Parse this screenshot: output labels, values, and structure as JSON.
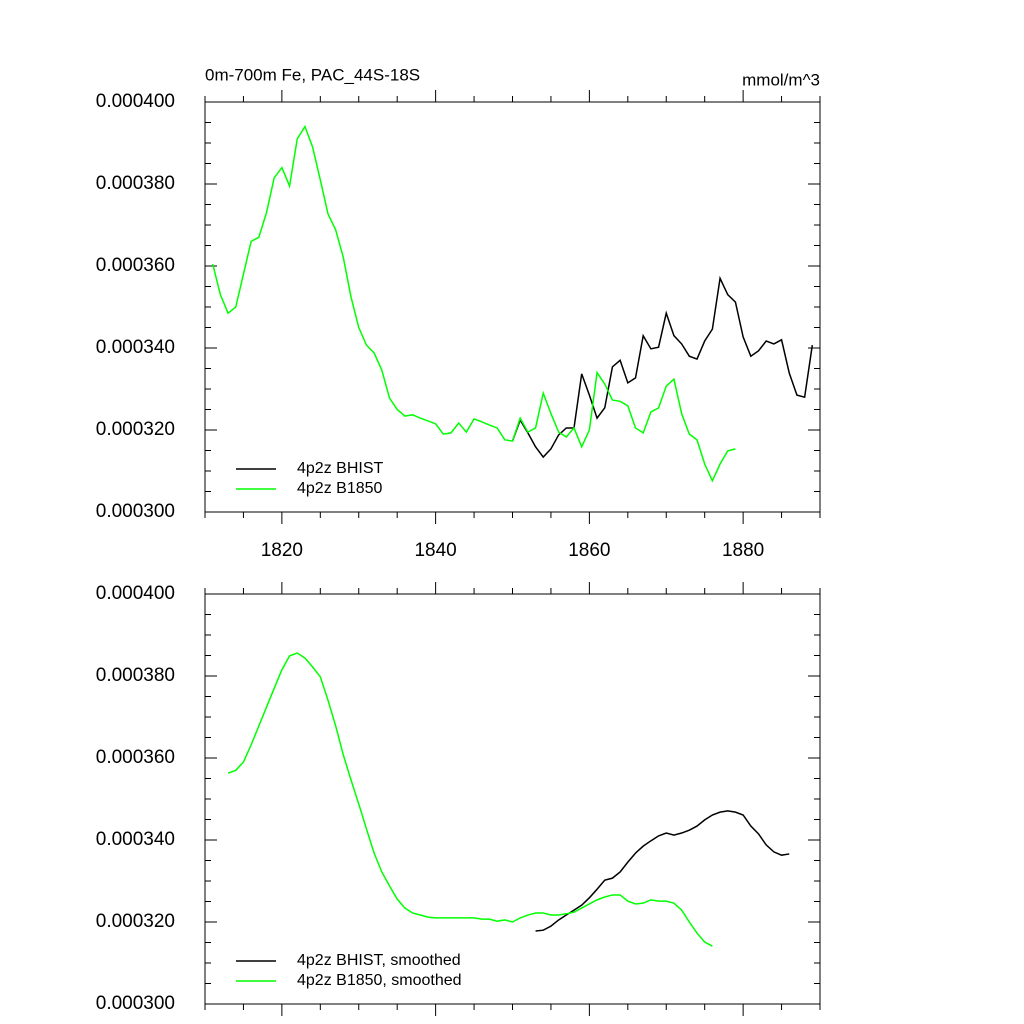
{
  "chart_data": [
    {
      "type": "line",
      "title": "0m-700m Fe, PAC_44S-18S",
      "units": "mmol/m^3",
      "xlim": [
        1810,
        1890
      ],
      "xticks": [
        1820,
        1840,
        1860,
        1880
      ],
      "xtick_labels": true,
      "ylim": [
        0.0003,
        0.0004
      ],
      "yticks": [
        {
          "value": 0.0003,
          "label": "0.000300"
        },
        {
          "value": 0.00032,
          "label": "0.000320"
        },
        {
          "value": 0.00034,
          "label": "0.000340"
        },
        {
          "value": 0.00036,
          "label": "0.000360"
        },
        {
          "value": 0.00038,
          "label": "0.000380"
        },
        {
          "value": 0.0004,
          "label": "0.000400"
        }
      ],
      "legend": "lower left",
      "series": [
        {
          "name": "4p2z BHIST",
          "color": "#000000",
          "x": [
            1850,
            1851,
            1852,
            1853,
            1854,
            1855,
            1856,
            1857,
            1858,
            1859,
            1860,
            1861,
            1862,
            1863,
            1864,
            1865,
            1866,
            1867,
            1868,
            1869,
            1870,
            1871,
            1872,
            1873,
            1874,
            1875,
            1876,
            1877,
            1878,
            1879,
            1880,
            1881,
            1882,
            1883,
            1884,
            1885,
            1886,
            1887,
            1888,
            1889
          ],
          "values": [
            0.0003173,
            0.0003224,
            0.0003193,
            0.0003159,
            0.0003134,
            0.0003154,
            0.0003188,
            0.0003205,
            0.0003205,
            0.0003337,
            0.0003285,
            0.0003229,
            0.0003254,
            0.0003354,
            0.000337,
            0.0003315,
            0.0003327,
            0.000343,
            0.0003398,
            0.0003402,
            0.0003485,
            0.000343,
            0.000341,
            0.000338,
            0.0003373,
            0.0003417,
            0.0003446,
            0.000357,
            0.000353,
            0.0003512,
            0.0003427,
            0.000338,
            0.0003393,
            0.0003417,
            0.000341,
            0.000342,
            0.0003339,
            0.0003285,
            0.000328,
            0.0003407
          ]
        },
        {
          "name": "4p2z B1850",
          "color": "#00ff00",
          "x": [
            1811,
            1812,
            1813,
            1814,
            1815,
            1816,
            1817,
            1818,
            1819,
            1820,
            1821,
            1822,
            1823,
            1824,
            1825,
            1826,
            1827,
            1828,
            1829,
            1830,
            1831,
            1832,
            1833,
            1834,
            1835,
            1836,
            1837,
            1838,
            1839,
            1840,
            1841,
            1842,
            1843,
            1844,
            1845,
            1846,
            1847,
            1848,
            1849,
            1850,
            1851,
            1852,
            1853,
            1854,
            1855,
            1856,
            1857,
            1858,
            1859,
            1860,
            1861,
            1862,
            1863,
            1864,
            1865,
            1866,
            1867,
            1868,
            1869,
            1870,
            1871,
            1872,
            1873,
            1874,
            1875,
            1876,
            1877,
            1878,
            1879
          ],
          "values": [
            0.0003605,
            0.000353,
            0.0003485,
            0.00035,
            0.000358,
            0.000366,
            0.000367,
            0.000373,
            0.0003815,
            0.000384,
            0.0003795,
            0.000391,
            0.000394,
            0.000389,
            0.000381,
            0.0003727,
            0.0003688,
            0.000362,
            0.0003524,
            0.000345,
            0.0003407,
            0.0003388,
            0.0003346,
            0.0003278,
            0.000325,
            0.0003234,
            0.0003237,
            0.0003229,
            0.0003222,
            0.0003215,
            0.000319,
            0.0003193,
            0.0003217,
            0.0003195,
            0.0003227,
            0.000322,
            0.0003212,
            0.0003205,
            0.0003176,
            0.0003173,
            0.0003229,
            0.0003195,
            0.0003205,
            0.000329,
            0.000324,
            0.0003195,
            0.0003183,
            0.0003205,
            0.0003159,
            0.00032,
            0.000334,
            0.0003312,
            0.0003273,
            0.000327,
            0.0003259,
            0.0003205,
            0.0003193,
            0.0003244,
            0.0003254,
            0.0003307,
            0.0003324,
            0.000324,
            0.000319,
            0.0003176,
            0.0003117,
            0.0003076,
            0.0003117,
            0.0003149,
            0.0003154
          ]
        }
      ]
    },
    {
      "type": "line",
      "xlim": [
        1810,
        1890
      ],
      "xticks": [
        1820,
        1840,
        1860,
        1880
      ],
      "xtick_labels": false,
      "ylim": [
        0.0003,
        0.0004
      ],
      "yticks": [
        {
          "value": 0.0003,
          "label": "0.000300"
        },
        {
          "value": 0.00032,
          "label": "0.000320"
        },
        {
          "value": 0.00034,
          "label": "0.000340"
        },
        {
          "value": 0.00036,
          "label": "0.000360"
        },
        {
          "value": 0.00038,
          "label": "0.000380"
        },
        {
          "value": 0.0004,
          "label": "0.000400"
        }
      ],
      "legend": "lower left",
      "series": [
        {
          "name": "4p2z BHIST, smoothed",
          "color": "#000000",
          "x": [
            1853,
            1854,
            1855,
            1856,
            1857,
            1858,
            1859,
            1860,
            1861,
            1862,
            1863,
            1864,
            1865,
            1866,
            1867,
            1868,
            1869,
            1870,
            1871,
            1872,
            1873,
            1874,
            1875,
            1876,
            1877,
            1878,
            1879,
            1880,
            1881,
            1882,
            1883,
            1884,
            1885,
            1886
          ],
          "values": [
            0.0003178,
            0.000318,
            0.000319,
            0.0003205,
            0.0003217,
            0.0003229,
            0.0003241,
            0.0003259,
            0.000328,
            0.0003302,
            0.0003307,
            0.0003322,
            0.0003346,
            0.0003368,
            0.0003385,
            0.0003398,
            0.000341,
            0.0003417,
            0.0003412,
            0.0003417,
            0.0003424,
            0.0003434,
            0.0003449,
            0.0003461,
            0.0003468,
            0.0003471,
            0.0003468,
            0.0003461,
            0.0003434,
            0.0003415,
            0.0003388,
            0.0003371,
            0.0003363,
            0.0003366
          ]
        },
        {
          "name": "4p2z B1850, smoothed",
          "color": "#00ff00",
          "x": [
            1813,
            1814,
            1815,
            1816,
            1817,
            1818,
            1819,
            1820,
            1821,
            1822,
            1823,
            1824,
            1825,
            1826,
            1827,
            1828,
            1829,
            1830,
            1831,
            1832,
            1833,
            1834,
            1835,
            1836,
            1837,
            1838,
            1839,
            1840,
            1841,
            1842,
            1843,
            1844,
            1845,
            1846,
            1847,
            1848,
            1849,
            1850,
            1851,
            1852,
            1853,
            1854,
            1855,
            1856,
            1857,
            1858,
            1859,
            1860,
            1861,
            1862,
            1863,
            1864,
            1865,
            1866,
            1867,
            1868,
            1869,
            1870,
            1871,
            1872,
            1873,
            1874,
            1875,
            1876
          ],
          "values": [
            0.0003563,
            0.000357,
            0.000359,
            0.0003632,
            0.0003678,
            0.0003724,
            0.000377,
            0.0003815,
            0.0003849,
            0.0003856,
            0.0003844,
            0.0003822,
            0.0003798,
            0.0003741,
            0.0003678,
            0.0003607,
            0.0003546,
            0.0003488,
            0.0003427,
            0.0003368,
            0.0003322,
            0.0003288,
            0.0003256,
            0.0003234,
            0.0003222,
            0.0003217,
            0.0003212,
            0.000321,
            0.000321,
            0.000321,
            0.000321,
            0.000321,
            0.000321,
            0.0003207,
            0.0003207,
            0.0003202,
            0.0003205,
            0.00032,
            0.000321,
            0.0003217,
            0.0003222,
            0.0003222,
            0.0003217,
            0.0003217,
            0.000322,
            0.0003224,
            0.0003234,
            0.0003244,
            0.0003254,
            0.0003261,
            0.0003266,
            0.0003266,
            0.0003251,
            0.0003244,
            0.0003246,
            0.0003254,
            0.0003251,
            0.0003251,
            0.0003246,
            0.0003229,
            0.00032,
            0.0003173,
            0.0003151,
            0.0003141
          ]
        }
      ]
    }
  ]
}
